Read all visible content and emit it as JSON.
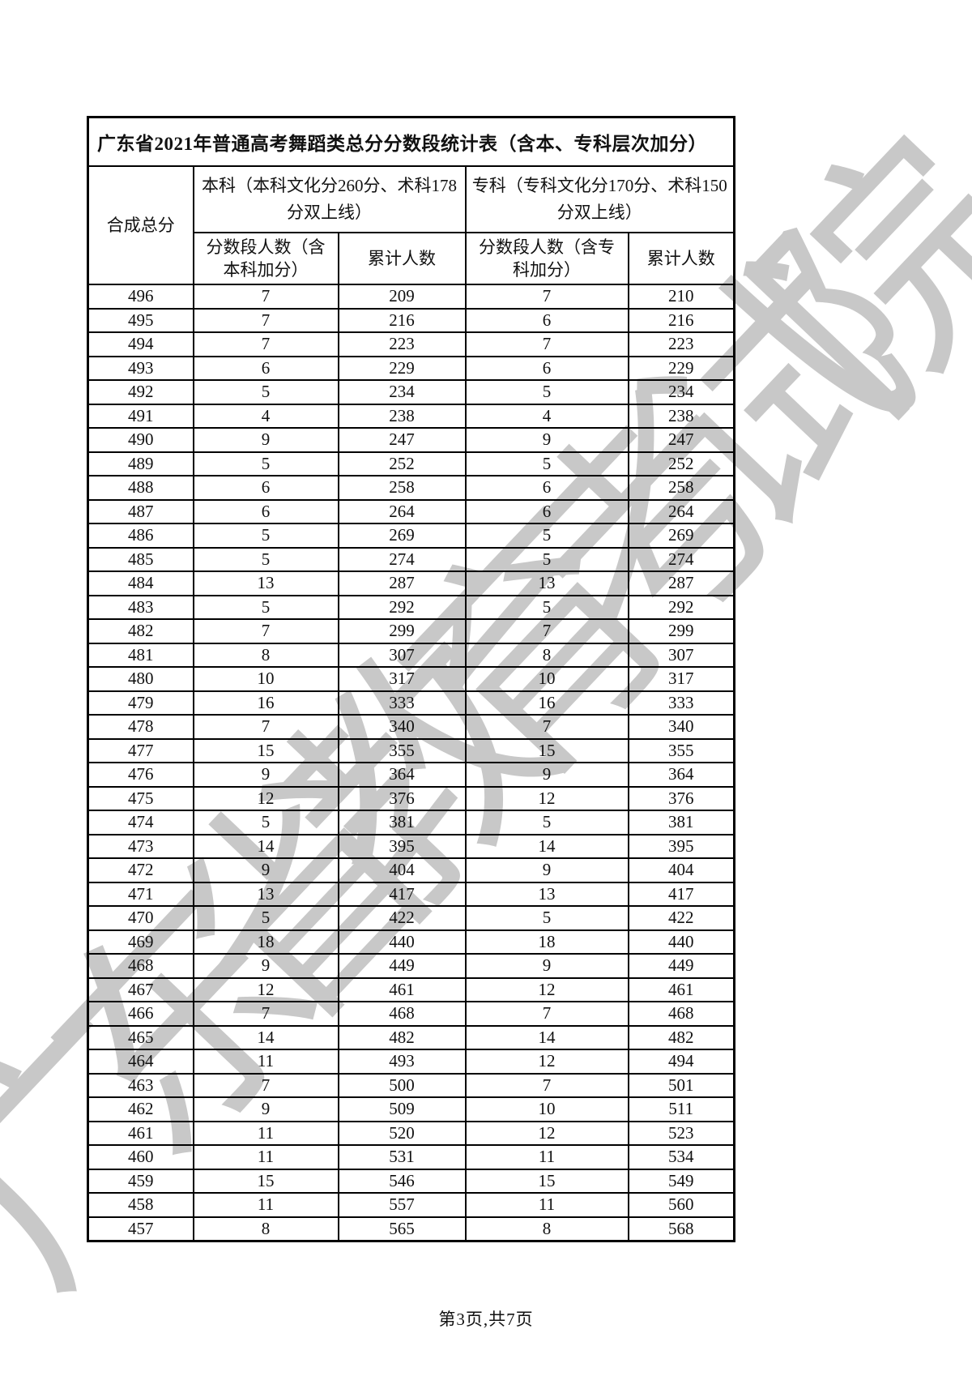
{
  "page": {
    "footer_text": "第3页,共7页",
    "background_color": "#ffffff"
  },
  "watermark": {
    "text": "广东省教育考试院",
    "color": "#c8c8c8"
  },
  "table": {
    "title": "广东省2021年普通高考舞蹈类总分分数段统计表（含本、专科层次加分）",
    "headers": {
      "total_score": "合成总分",
      "benke_group": "本科（本科文化分260分、术科178分双上线）",
      "zhuanke_group": "专科（专科文化分170分、术科150分双上线）",
      "benke_segment": "分数段人数（含本科加分）",
      "benke_cumulative": "累计人数",
      "zhuanke_segment": "分数段人数（含专科加分）",
      "zhuanke_cumulative": "累计人数"
    },
    "rows": [
      [
        496,
        7,
        209,
        7,
        210
      ],
      [
        495,
        7,
        216,
        6,
        216
      ],
      [
        494,
        7,
        223,
        7,
        223
      ],
      [
        493,
        6,
        229,
        6,
        229
      ],
      [
        492,
        5,
        234,
        5,
        234
      ],
      [
        491,
        4,
        238,
        4,
        238
      ],
      [
        490,
        9,
        247,
        9,
        247
      ],
      [
        489,
        5,
        252,
        5,
        252
      ],
      [
        488,
        6,
        258,
        6,
        258
      ],
      [
        487,
        6,
        264,
        6,
        264
      ],
      [
        486,
        5,
        269,
        5,
        269
      ],
      [
        485,
        5,
        274,
        5,
        274
      ],
      [
        484,
        13,
        287,
        13,
        287
      ],
      [
        483,
        5,
        292,
        5,
        292
      ],
      [
        482,
        7,
        299,
        7,
        299
      ],
      [
        481,
        8,
        307,
        8,
        307
      ],
      [
        480,
        10,
        317,
        10,
        317
      ],
      [
        479,
        16,
        333,
        16,
        333
      ],
      [
        478,
        7,
        340,
        7,
        340
      ],
      [
        477,
        15,
        355,
        15,
        355
      ],
      [
        476,
        9,
        364,
        9,
        364
      ],
      [
        475,
        12,
        376,
        12,
        376
      ],
      [
        474,
        5,
        381,
        5,
        381
      ],
      [
        473,
        14,
        395,
        14,
        395
      ],
      [
        472,
        9,
        404,
        9,
        404
      ],
      [
        471,
        13,
        417,
        13,
        417
      ],
      [
        470,
        5,
        422,
        5,
        422
      ],
      [
        469,
        18,
        440,
        18,
        440
      ],
      [
        468,
        9,
        449,
        9,
        449
      ],
      [
        467,
        12,
        461,
        12,
        461
      ],
      [
        466,
        7,
        468,
        7,
        468
      ],
      [
        465,
        14,
        482,
        14,
        482
      ],
      [
        464,
        11,
        493,
        12,
        494
      ],
      [
        463,
        7,
        500,
        7,
        501
      ],
      [
        462,
        9,
        509,
        10,
        511
      ],
      [
        461,
        11,
        520,
        12,
        523
      ],
      [
        460,
        11,
        531,
        11,
        534
      ],
      [
        459,
        15,
        546,
        15,
        549
      ],
      [
        458,
        11,
        557,
        11,
        560
      ],
      [
        457,
        8,
        565,
        8,
        568
      ]
    ]
  }
}
